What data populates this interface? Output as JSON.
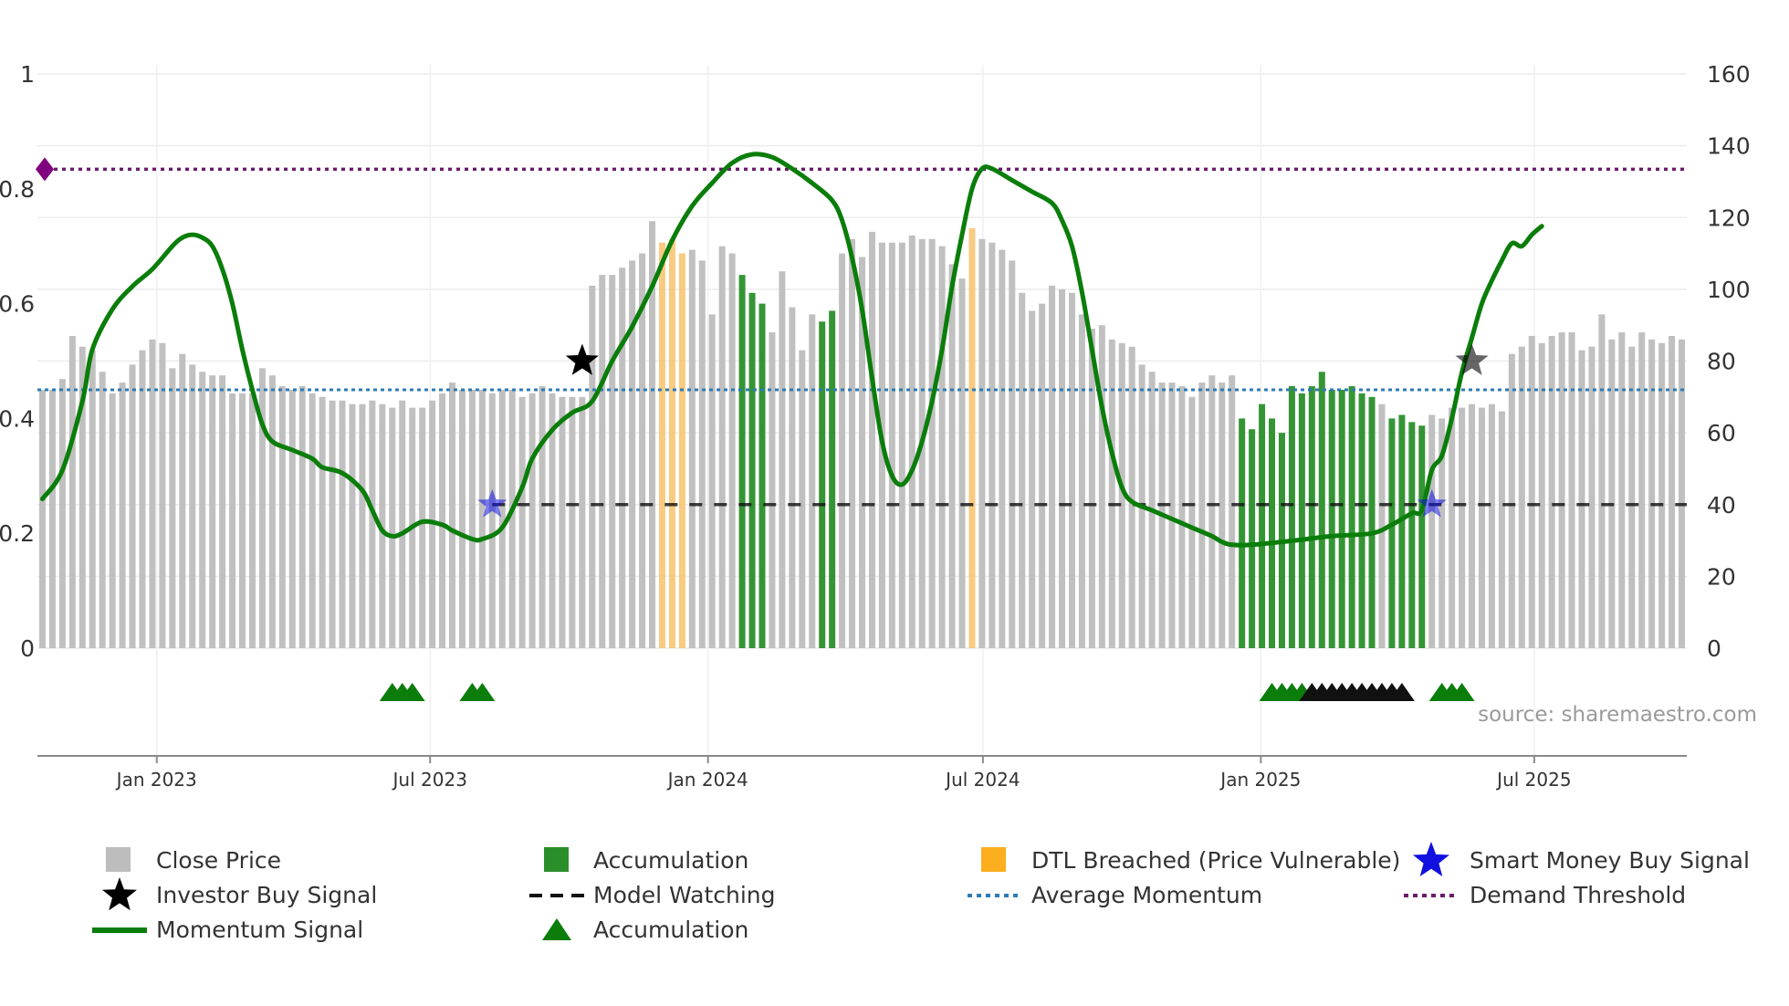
{
  "chart_data": {
    "type": "bar+line",
    "title": "",
    "left_axis": {
      "ylim": [
        0,
        1
      ],
      "ticks": [
        "0",
        "0.2",
        "0.4",
        "0.6",
        "0.8",
        "1"
      ]
    },
    "right_axis": {
      "ylim": [
        0,
        160
      ],
      "ticks": [
        "0",
        "20",
        "40",
        "60",
        "80",
        "100",
        "120",
        "140",
        "160"
      ]
    },
    "x_axis": {
      "start": "2022-10-14",
      "end": "2025-10-10",
      "ticks": [
        {
          "label": "Jan 2023",
          "date": "2023-01-01"
        },
        {
          "label": "Jul 2023",
          "date": "2023-07-01"
        },
        {
          "label": "Jan 2024",
          "date": "2024-01-01"
        },
        {
          "label": "Jul 2024",
          "date": "2024-07-01"
        },
        {
          "label": "Jan 2025",
          "date": "2025-01-01"
        },
        {
          "label": "Jul 2025",
          "date": "2025-07-01"
        }
      ]
    },
    "close_price": {
      "name": "Close Price",
      "color": "#bdbdbd",
      "values": [
        72,
        72,
        75,
        87,
        84,
        83,
        77,
        71,
        74,
        79,
        83,
        86,
        85,
        78,
        82,
        79,
        77,
        76,
        76,
        71,
        71,
        71,
        78,
        76,
        73,
        72,
        73,
        71,
        70,
        69,
        69,
        68,
        68,
        69,
        68,
        67,
        69,
        67,
        67,
        69,
        71,
        74,
        72,
        72,
        72,
        71,
        72,
        72,
        70,
        71,
        73,
        71,
        70,
        70,
        70,
        101,
        104,
        104,
        106,
        108,
        110,
        119,
        113,
        114,
        110,
        111,
        108,
        93,
        112,
        110,
        104,
        99,
        96,
        88,
        105,
        95,
        83,
        93,
        91,
        94,
        110,
        114,
        109,
        116,
        113,
        113,
        113,
        115,
        114,
        114,
        112,
        107,
        103,
        117,
        114,
        113,
        111,
        108,
        99,
        94,
        96,
        101,
        100,
        99,
        93,
        89,
        90,
        86,
        85,
        84,
        79,
        77,
        74,
        74,
        73,
        70,
        74,
        76,
        74,
        76,
        64,
        61,
        68,
        64,
        60,
        73,
        71,
        73,
        77,
        72,
        72,
        73,
        71,
        70,
        68,
        64,
        65,
        63,
        62,
        65,
        64,
        67,
        67,
        68,
        67,
        68,
        66,
        82,
        84,
        87,
        85,
        87,
        88,
        88,
        83,
        84,
        93,
        86,
        88,
        84,
        88,
        86,
        85,
        87,
        86
      ],
      "accumulation_indices": [
        70,
        71,
        72,
        78,
        79,
        120,
        121,
        122,
        123,
        124,
        125,
        126,
        127,
        128,
        129,
        130,
        131,
        132,
        133,
        135,
        136,
        137,
        138
      ],
      "dtl_breached_indices": [
        62,
        63,
        64,
        93
      ]
    },
    "momentum_signal": {
      "name": "Momentum Signal",
      "color": "#0a7d0a",
      "points": [
        [
          0,
          0.26
        ],
        [
          2,
          0.31
        ],
        [
          4,
          0.43
        ],
        [
          5,
          0.52
        ],
        [
          7,
          0.59
        ],
        [
          9,
          0.63
        ],
        [
          11,
          0.66
        ],
        [
          13,
          0.7
        ],
        [
          14,
          0.715
        ],
        [
          15,
          0.72
        ],
        [
          16,
          0.715
        ],
        [
          17,
          0.7
        ],
        [
          18,
          0.66
        ],
        [
          19,
          0.6
        ],
        [
          20,
          0.52
        ],
        [
          21,
          0.45
        ],
        [
          22,
          0.39
        ],
        [
          23,
          0.36
        ],
        [
          25,
          0.345
        ],
        [
          27,
          0.33
        ],
        [
          28,
          0.315
        ],
        [
          30,
          0.305
        ],
        [
          32,
          0.275
        ],
        [
          33,
          0.24
        ],
        [
          34,
          0.205
        ],
        [
          35,
          0.195
        ],
        [
          36,
          0.2
        ],
        [
          38,
          0.22
        ],
        [
          40,
          0.215
        ],
        [
          41,
          0.205
        ],
        [
          43,
          0.19
        ],
        [
          44,
          0.19
        ],
        [
          46,
          0.21
        ],
        [
          48,
          0.28
        ],
        [
          49,
          0.33
        ],
        [
          51,
          0.38
        ],
        [
          53,
          0.41
        ],
        [
          55,
          0.43
        ],
        [
          57,
          0.5
        ],
        [
          59,
          0.56
        ],
        [
          61,
          0.63
        ],
        [
          63,
          0.71
        ],
        [
          65,
          0.77
        ],
        [
          67,
          0.81
        ],
        [
          69,
          0.845
        ],
        [
          71,
          0.86
        ],
        [
          73,
          0.855
        ],
        [
          75,
          0.835
        ],
        [
          77,
          0.81
        ],
        [
          79,
          0.78
        ],
        [
          80,
          0.745
        ],
        [
          81,
          0.68
        ],
        [
          82,
          0.59
        ],
        [
          83,
          0.47
        ],
        [
          84,
          0.36
        ],
        [
          85,
          0.3
        ],
        [
          86,
          0.285
        ],
        [
          87,
          0.31
        ],
        [
          88,
          0.36
        ],
        [
          89,
          0.43
        ],
        [
          90,
          0.52
        ],
        [
          91,
          0.63
        ],
        [
          92,
          0.72
        ],
        [
          93,
          0.8
        ],
        [
          94,
          0.835
        ],
        [
          95,
          0.835
        ],
        [
          97,
          0.815
        ],
        [
          99,
          0.795
        ],
        [
          101,
          0.775
        ],
        [
          102,
          0.745
        ],
        [
          103,
          0.7
        ],
        [
          104,
          0.62
        ],
        [
          105,
          0.52
        ],
        [
          106,
          0.42
        ],
        [
          107,
          0.34
        ],
        [
          108,
          0.28
        ],
        [
          109,
          0.255
        ],
        [
          111,
          0.24
        ],
        [
          113,
          0.225
        ],
        [
          115,
          0.21
        ],
        [
          117,
          0.195
        ],
        [
          118,
          0.185
        ],
        [
          119,
          0.18
        ],
        [
          121,
          0.18
        ],
        [
          125,
          0.187
        ],
        [
          129,
          0.195
        ],
        [
          133,
          0.2
        ],
        [
          135,
          0.215
        ],
        [
          137,
          0.235
        ],
        [
          138,
          0.24
        ],
        [
          139,
          0.31
        ],
        [
          140,
          0.335
        ],
        [
          141,
          0.4
        ],
        [
          142,
          0.48
        ],
        [
          143,
          0.54
        ],
        [
          144,
          0.6
        ],
        [
          145,
          0.64
        ],
        [
          146,
          0.675
        ],
        [
          147,
          0.705
        ],
        [
          148,
          0.7
        ],
        [
          149,
          0.72
        ],
        [
          150,
          0.735
        ]
      ]
    },
    "average_momentum": {
      "name": "Average Momentum",
      "value": 0.45,
      "color": "#2e7bb4"
    },
    "demand_threshold": {
      "name": "Demand Threshold",
      "value": 0.834,
      "color": "#6b1a6b"
    },
    "model_watching": {
      "name": "Model Watching",
      "value": 0.25,
      "start_index": 45,
      "color": "#111111"
    },
    "investor_buy_signals": [
      {
        "index": 54,
        "value": 0.5
      },
      {
        "index": 143,
        "value": 0.5
      }
    ],
    "smart_money_buy_signals": [
      {
        "index": 45,
        "value": 0.25
      },
      {
        "index": 139,
        "value": 0.25
      }
    ],
    "accumulation_markers": {
      "green_indices": [
        35,
        36,
        37,
        43,
        44,
        123,
        124,
        125,
        126,
        140,
        141,
        142
      ],
      "black_indices": [
        127,
        128,
        129,
        130,
        131,
        132,
        133,
        134,
        135,
        136
      ]
    },
    "start_marker": {
      "index": 0,
      "value": 0.834,
      "color": "#800080"
    }
  },
  "legend": [
    {
      "label": "Close Price",
      "icon": "gray-square"
    },
    {
      "label": "Accumulation",
      "icon": "green-square"
    },
    {
      "label": "DTL Breached (Price Vulnerable)",
      "icon": "orange-square"
    },
    {
      "label": "Smart Money Buy Signal",
      "icon": "blue-star"
    },
    {
      "label": "Investor Buy Signal",
      "icon": "black-star"
    },
    {
      "label": "Model Watching",
      "icon": "black-dashed-line"
    },
    {
      "label": "Average Momentum",
      "icon": "blue-dotted-line"
    },
    {
      "label": "Demand Threshold",
      "icon": "purple-dotted-line"
    },
    {
      "label": "Momentum Signal",
      "icon": "green-line"
    },
    {
      "label": "Accumulation",
      "icon": "green-triangle"
    }
  ],
  "colors": {
    "accumulation": "#2a8f2a",
    "dtl": "#f7c26b",
    "smart_money": "#1010e0",
    "investor": "#000000",
    "triangle_green": "#0a7d0a"
  },
  "source": "source: sharemaestro.com"
}
